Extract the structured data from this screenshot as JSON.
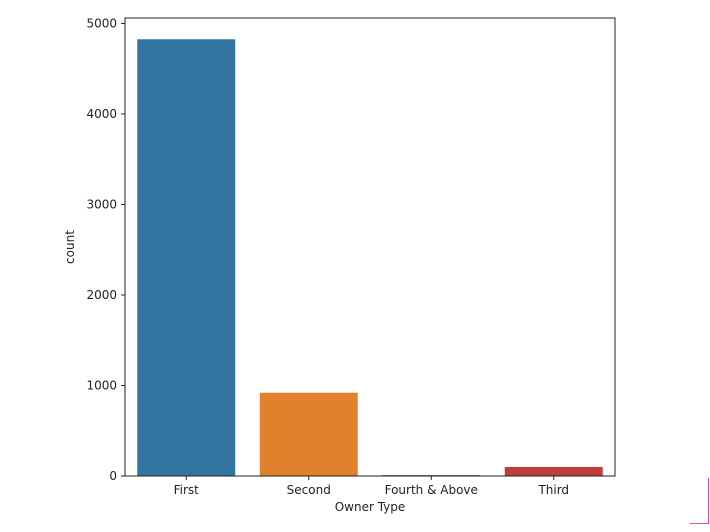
{
  "chart_data": {
    "type": "bar",
    "title": "",
    "xlabel": "Owner Type",
    "ylabel": "count",
    "categories": [
      "First",
      "Second",
      "Fourth & Above",
      "Third"
    ],
    "values": [
      4825,
      920,
      10,
      100
    ],
    "colors": [
      "#3274a1",
      "#e1812c",
      "#3a923a",
      "#c03d3e"
    ],
    "yticks": [
      0,
      1000,
      2000,
      3000,
      4000,
      5000
    ],
    "ylim": [
      0,
      5060
    ],
    "grid": false,
    "legend": "none"
  }
}
